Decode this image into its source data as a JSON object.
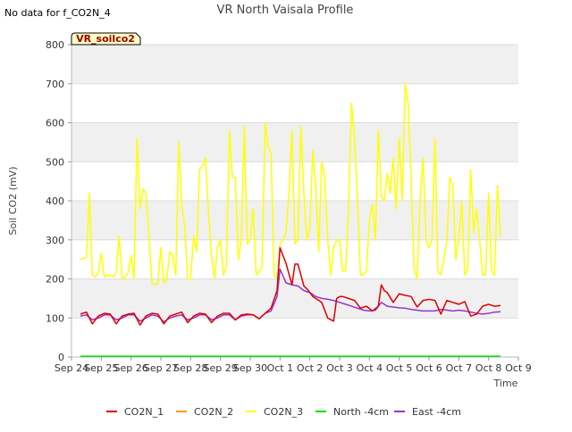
{
  "chart_data": {
    "type": "line",
    "title": "VR North Vaisala Profile",
    "no_data_note": "No data for f_CO2N_4",
    "badge": "VR_soilco2",
    "xlabel": "Time",
    "ylabel": "Soil CO2 (mV)",
    "xlim": [
      0,
      15
    ],
    "ylim": [
      0,
      800
    ],
    "x_ticks": [
      {
        "pos": 0,
        "label": "Sep 24"
      },
      {
        "pos": 1,
        "label": "Sep 25"
      },
      {
        "pos": 2,
        "label": "Sep 26"
      },
      {
        "pos": 3,
        "label": "Sep 27"
      },
      {
        "pos": 4,
        "label": "Sep 28"
      },
      {
        "pos": 5,
        "label": "Sep 29"
      },
      {
        "pos": 6,
        "label": "Sep 30"
      },
      {
        "pos": 7,
        "label": "Oct 1"
      },
      {
        "pos": 8,
        "label": "Oct 2"
      },
      {
        "pos": 9,
        "label": "Oct 3"
      },
      {
        "pos": 10,
        "label": "Oct 4"
      },
      {
        "pos": 11,
        "label": "Oct 5"
      },
      {
        "pos": 12,
        "label": "Oct 6"
      },
      {
        "pos": 13,
        "label": "Oct 7"
      },
      {
        "pos": 14,
        "label": "Oct 8"
      },
      {
        "pos": 15,
        "label": "Oct 9"
      }
    ],
    "y_ticks": [
      0,
      100,
      200,
      300,
      400,
      500,
      600,
      700,
      800
    ],
    "grid": true,
    "legend_position": "bottom",
    "series": [
      {
        "name": "CO2N_1",
        "color": "#dd0000",
        "x": [
          0.3,
          0.5,
          0.7,
          0.9,
          1.1,
          1.3,
          1.5,
          1.7,
          1.9,
          2.1,
          2.3,
          2.5,
          2.7,
          2.9,
          3.1,
          3.3,
          3.5,
          3.7,
          3.9,
          4.1,
          4.3,
          4.5,
          4.7,
          4.9,
          5.1,
          5.3,
          5.5,
          5.7,
          5.9,
          6.1,
          6.3,
          6.5,
          6.7,
          6.9,
          7.0,
          7.2,
          7.4,
          7.5,
          7.6,
          7.7,
          7.8,
          7.9,
          8.0,
          8.1,
          8.2,
          8.4,
          8.6,
          8.8,
          8.9,
          9.0,
          9.1,
          9.3,
          9.5,
          9.7,
          9.9,
          10.1,
          10.3,
          10.4,
          10.5,
          10.6,
          10.8,
          11.0,
          11.2,
          11.4,
          11.6,
          11.8,
          12.0,
          12.2,
          12.4,
          12.6,
          12.8,
          13.0,
          13.2,
          13.4,
          13.6,
          13.8,
          14.0,
          14.2,
          14.4
        ],
        "values": [
          110,
          115,
          85,
          105,
          112,
          110,
          85,
          105,
          110,
          112,
          82,
          105,
          112,
          110,
          85,
          105,
          110,
          115,
          88,
          105,
          112,
          110,
          88,
          105,
          112,
          112,
          95,
          108,
          110,
          108,
          98,
          112,
          125,
          170,
          280,
          240,
          185,
          238,
          238,
          210,
          182,
          175,
          165,
          155,
          150,
          140,
          100,
          92,
          150,
          155,
          155,
          150,
          145,
          125,
          130,
          118,
          130,
          185,
          170,
          165,
          140,
          162,
          158,
          155,
          128,
          145,
          148,
          145,
          110,
          145,
          140,
          135,
          142,
          105,
          110,
          130,
          135,
          130,
          132
        ]
      },
      {
        "name": "CO2N_2",
        "color": "#ff9900",
        "x": [],
        "values": []
      },
      {
        "name": "CO2N_3",
        "color": "#ffff00",
        "x": [
          0.3,
          0.5,
          0.6,
          0.7,
          0.8,
          0.9,
          1.0,
          1.1,
          1.2,
          1.3,
          1.4,
          1.5,
          1.6,
          1.7,
          1.8,
          1.9,
          2.0,
          2.1,
          2.2,
          2.3,
          2.4,
          2.5,
          2.6,
          2.7,
          2.8,
          2.9,
          3.0,
          3.1,
          3.2,
          3.3,
          3.4,
          3.5,
          3.6,
          3.7,
          3.8,
          3.9,
          4.0,
          4.1,
          4.2,
          4.3,
          4.4,
          4.5,
          4.6,
          4.7,
          4.8,
          4.9,
          5.0,
          5.1,
          5.2,
          5.3,
          5.4,
          5.5,
          5.6,
          5.7,
          5.8,
          5.9,
          6.0,
          6.1,
          6.2,
          6.3,
          6.4,
          6.5,
          6.6,
          6.7,
          6.8,
          6.9,
          7.0,
          7.1,
          7.2,
          7.3,
          7.4,
          7.5,
          7.6,
          7.7,
          7.8,
          7.9,
          8.0,
          8.1,
          8.2,
          8.3,
          8.4,
          8.5,
          8.6,
          8.7,
          8.8,
          8.9,
          9.0,
          9.1,
          9.2,
          9.3,
          9.4,
          9.5,
          9.6,
          9.7,
          9.8,
          9.9,
          10.0,
          10.1,
          10.2,
          10.3,
          10.4,
          10.5,
          10.6,
          10.7,
          10.8,
          10.9,
          11.0,
          11.1,
          11.2,
          11.3,
          11.4,
          11.5,
          11.6,
          11.7,
          11.8,
          11.9,
          12.0,
          12.1,
          12.2,
          12.3,
          12.4,
          12.5,
          12.6,
          12.7,
          12.8,
          12.9,
          13.0,
          13.1,
          13.2,
          13.3,
          13.4,
          13.5,
          13.6,
          13.7,
          13.8,
          13.9,
          14.0,
          14.1,
          14.2,
          14.3,
          14.4
        ],
        "values": [
          250,
          255,
          420,
          210,
          205,
          215,
          265,
          205,
          210,
          210,
          205,
          215,
          310,
          200,
          205,
          215,
          260,
          200,
          560,
          380,
          430,
          420,
          310,
          190,
          185,
          190,
          280,
          190,
          200,
          270,
          260,
          210,
          550,
          390,
          330,
          200,
          200,
          310,
          270,
          480,
          490,
          510,
          370,
          260,
          200,
          280,
          300,
          210,
          230,
          580,
          460,
          460,
          250,
          300,
          590,
          290,
          300,
          380,
          210,
          220,
          230,
          600,
          540,
          520,
          210,
          200,
          290,
          300,
          320,
          420,
          580,
          290,
          300,
          590,
          420,
          300,
          330,
          530,
          440,
          270,
          500,
          460,
          300,
          210,
          280,
          300,
          300,
          220,
          220,
          380,
          650,
          560,
          400,
          210,
          210,
          220,
          350,
          390,
          300,
          580,
          410,
          400,
          470,
          420,
          510,
          380,
          560,
          400,
          700,
          650,
          460,
          230,
          200,
          400,
          510,
          300,
          280,
          300,
          560,
          220,
          210,
          250,
          300,
          460,
          440,
          250,
          300,
          400,
          210,
          225,
          480,
          320,
          380,
          300,
          210,
          210,
          420,
          220,
          210,
          440,
          310
        ]
      },
      {
        "name": "North -4cm",
        "color": "#00dd00",
        "x": [
          0.3,
          14.4
        ],
        "values": [
          2,
          2
        ]
      },
      {
        "name": "East -4cm",
        "color": "#9933cc",
        "x": [
          0.3,
          0.5,
          0.7,
          0.9,
          1.1,
          1.3,
          1.5,
          1.7,
          1.9,
          2.1,
          2.3,
          2.5,
          2.7,
          2.9,
          3.1,
          3.3,
          3.5,
          3.7,
          3.9,
          4.1,
          4.3,
          4.5,
          4.7,
          4.9,
          5.1,
          5.3,
          5.5,
          5.7,
          5.9,
          6.1,
          6.3,
          6.5,
          6.7,
          6.9,
          7.0,
          7.2,
          7.4,
          7.6,
          7.8,
          8.0,
          8.2,
          8.4,
          8.6,
          8.8,
          9.0,
          9.2,
          9.4,
          9.6,
          9.8,
          10.0,
          10.2,
          10.4,
          10.6,
          10.8,
          11.0,
          11.2,
          11.4,
          11.6,
          11.8,
          12.0,
          12.2,
          12.4,
          12.6,
          12.8,
          13.0,
          13.2,
          13.4,
          13.6,
          13.8,
          14.0,
          14.2,
          14.4
        ],
        "values": [
          105,
          108,
          95,
          100,
          108,
          108,
          95,
          100,
          108,
          108,
          92,
          100,
          108,
          105,
          90,
          100,
          105,
          108,
          95,
          100,
          108,
          108,
          95,
          100,
          108,
          108,
          95,
          105,
          108,
          108,
          98,
          112,
          118,
          155,
          225,
          190,
          185,
          182,
          170,
          165,
          155,
          150,
          148,
          145,
          140,
          135,
          130,
          125,
          120,
          118,
          120,
          140,
          130,
          128,
          126,
          125,
          122,
          120,
          118,
          118,
          118,
          122,
          120,
          118,
          120,
          118,
          115,
          112,
          110,
          112,
          115,
          116
        ]
      }
    ]
  }
}
